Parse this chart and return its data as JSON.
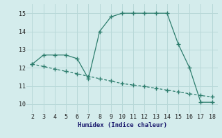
{
  "xlabel": "Humidex (Indice chaleur)",
  "solid_x": [
    2,
    3,
    4,
    5,
    6,
    7,
    8,
    9,
    10,
    11,
    12,
    13,
    14,
    15,
    16,
    17,
    18
  ],
  "solid_y": [
    12.2,
    12.7,
    12.7,
    12.7,
    12.5,
    11.4,
    14.0,
    14.8,
    15.0,
    15.0,
    15.0,
    15.0,
    15.0,
    13.3,
    12.0,
    10.1,
    10.1
  ],
  "dashed_x": [
    2,
    3,
    4,
    5,
    6,
    7,
    8,
    9,
    10,
    11,
    12,
    13,
    14,
    15,
    16,
    17,
    18
  ],
  "dashed_y": [
    12.2,
    12.07,
    11.93,
    11.8,
    11.67,
    11.53,
    11.4,
    11.27,
    11.13,
    11.05,
    10.97,
    10.87,
    10.77,
    10.67,
    10.57,
    10.47,
    10.4
  ],
  "line_color": "#2d7d6d",
  "xlim": [
    1.5,
    18.5
  ],
  "ylim": [
    9.5,
    15.5
  ],
  "xticks": [
    2,
    3,
    4,
    5,
    6,
    7,
    8,
    9,
    10,
    11,
    12,
    13,
    14,
    15,
    16,
    17,
    18
  ],
  "yticks": [
    10,
    11,
    12,
    13,
    14,
    15
  ],
  "bg_color": "#d4ecec",
  "grid_color": "#b8d8d8",
  "marker": "+",
  "marker_size": 4,
  "tick_fontsize": 6,
  "xlabel_fontsize": 6.5,
  "xlabel_color": "#1a1a6e"
}
